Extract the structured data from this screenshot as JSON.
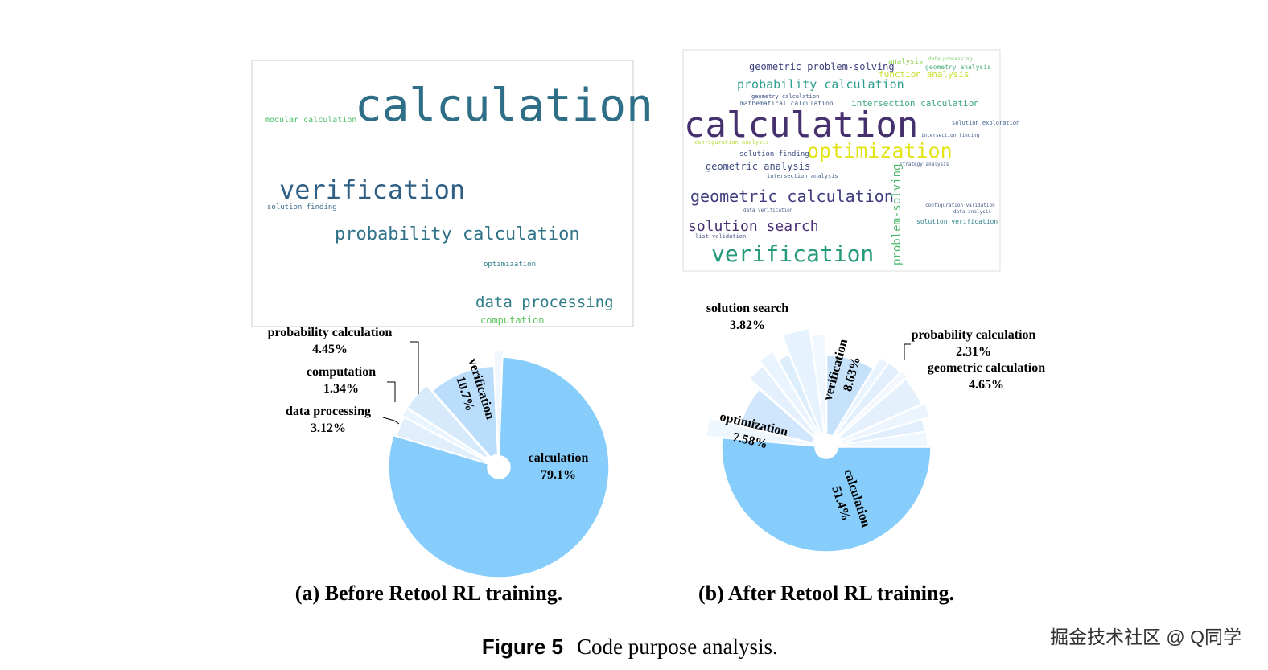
{
  "chart_data": [
    {
      "type": "pie",
      "categories": [
        "calculation",
        "data processing",
        "computation",
        "probability calculation",
        "verification",
        null
      ],
      "values": [
        79.1,
        3.12,
        1.34,
        4.45,
        10.7,
        1.29
      ],
      "value_labels": [
        "79.1%",
        "3.12%",
        "1.34%",
        "4.45%",
        "10.7%",
        null
      ],
      "colors": [
        "#87cdfb",
        "#e1effd",
        "#eaf4fe",
        "#d7eafc",
        "#b9ddfb",
        "#f0f7fe"
      ]
    },
    {
      "type": "pie",
      "categories": [
        "calculation",
        null,
        "optimization",
        null,
        null,
        null,
        "solution search",
        null,
        "verification",
        null,
        "probability calculation",
        null,
        "geometric calculation",
        null,
        null,
        null
      ],
      "values": [
        51.4,
        2.5,
        7.58,
        3,
        2.5,
        2,
        3.82,
        2.2,
        8.63,
        1.5,
        2.31,
        1.2,
        4.65,
        2.2,
        2.0,
        2.51
      ],
      "value_labels": [
        "51.4%",
        null,
        "7.58%",
        null,
        null,
        null,
        "3.82%",
        null,
        "8.63%",
        null,
        "2.31%",
        null,
        "4.65%",
        null,
        null,
        null
      ],
      "colors": [
        "#87cdfb",
        "#eef6fe",
        "#cfe6fc",
        "#e4f1fd",
        "#eaf4fe",
        "#dcedfc",
        "#e6f2fd",
        "#f0f7fe",
        "#c6e2fb",
        "#eaf4fe",
        "#e1effd",
        "#f2f8fe",
        "#e4f1fd",
        "#ecf5fe",
        "#e0eefd",
        "#eef6fe"
      ]
    }
  ],
  "word_clouds": [
    [
      "calculation",
      "modular calculation",
      "verification",
      "solution finding",
      "probability calculation",
      "optimization",
      "data processing",
      "computation"
    ],
    [
      "geometric problem-solving",
      "analysis",
      "data processing",
      "geometry analysis",
      "function analysis",
      "probability calculation",
      "geometry calculation",
      "mathematical calculation",
      "intersection calculation",
      "calculation",
      "solution exploration",
      "intersection finding",
      "optimization",
      "configuration analysis",
      "solution finding",
      "geometric analysis",
      "strategy analysis",
      "intersection analysis",
      "geometric calculation",
      "data verification",
      "solution search",
      "configuration validation",
      "data analysis",
      "solution verification",
      "list validation",
      "verification",
      "problem-solving"
    ]
  ],
  "subcaptions": [
    "(a) Before Retool RL training.",
    "(b) After Retool RL training."
  ],
  "figure_label": "Figure 5",
  "figure_caption": "Code purpose analysis.",
  "watermark": "掘金技术社区 @ Q同学"
}
